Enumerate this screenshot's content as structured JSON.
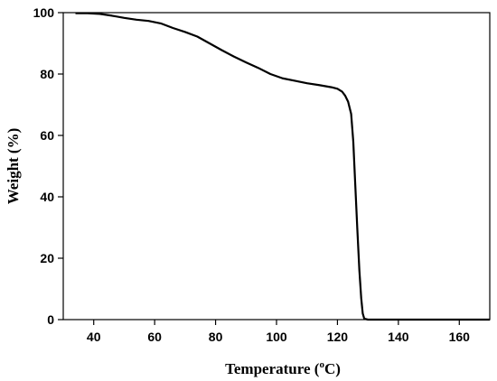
{
  "chart_data": {
    "type": "line",
    "title": "",
    "xlabel": "Temperature (",
    "xlabel_sup": "o",
    "xlabel_unit": "C)",
    "ylabel": "Weight (%)",
    "xlim": [
      30,
      170
    ],
    "ylim": [
      0,
      100
    ],
    "x_ticks": [
      40,
      60,
      80,
      100,
      120,
      140,
      160
    ],
    "y_ticks": [
      0,
      20,
      40,
      60,
      80,
      100
    ],
    "grid": false,
    "legend": "none",
    "line_color": "#000000",
    "series": [
      {
        "x": [
          34,
          38,
          42,
          46,
          50,
          54,
          58,
          62,
          66,
          70,
          74,
          78,
          82,
          86,
          90,
          94,
          98,
          102,
          106,
          110,
          114,
          118,
          120,
          121.5,
          122.5,
          123.5,
          124.5,
          125.2,
          125.8,
          126.5,
          127.2,
          127.8,
          128.3,
          128.8,
          130,
          140,
          150,
          160,
          170
        ],
        "y": [
          99.8,
          99.8,
          99.6,
          99.0,
          98.3,
          97.7,
          97.3,
          96.5,
          95.0,
          93.7,
          92.2,
          90.0,
          87.8,
          85.7,
          83.8,
          82.0,
          80.0,
          78.6,
          77.8,
          77.0,
          76.4,
          75.7,
          75.2,
          74.3,
          73.0,
          71.0,
          67.0,
          58.0,
          45.0,
          30.0,
          16.0,
          7.0,
          2.0,
          0.3,
          0,
          0,
          0,
          0,
          0
        ]
      }
    ]
  }
}
